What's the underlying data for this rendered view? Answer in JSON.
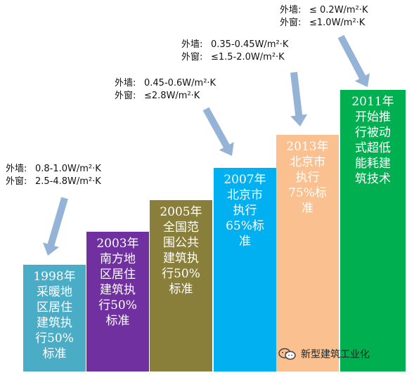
{
  "chart_data": {
    "type": "bar",
    "categories": [
      "1998年",
      "2003年",
      "2005年",
      "2007年",
      "2013年",
      "2011年"
    ],
    "bars": [
      {
        "label": "1998年\n采暖地\n区居住\n建筑执\n行50%\n标准",
        "color": "#4bacc6",
        "level": 1
      },
      {
        "label": "2003年\n南方地\n区居住\n建筑执\n行50%\n标准",
        "color": "#7030a0",
        "level": 2
      },
      {
        "label": "2005年\n全国范\n围公共\n建筑执\n行50%\n标准",
        "color": "#8a7f3a",
        "level": 3
      },
      {
        "label": "2007年\n北京市\n执行\n65%标\n准",
        "color": "#00b0f0",
        "level": 4
      },
      {
        "label": "2013年\n北京市\n执行\n75%标\n准",
        "color": "#fac090",
        "level": 5
      },
      {
        "label": "2011年\n开始推\n行被动\n式超低\n能耗建\n筑技术",
        "color": "#00b050",
        "level": 6
      }
    ],
    "annotations": [
      {
        "wall_key": "外墙:",
        "wall_value": "0.8-1.0W/m²·K",
        "window_key": "外窗:",
        "window_value": "2.5-4.8W/m²·K"
      },
      {
        "wall_key": "外墙:",
        "wall_value": "0.45-0.6W/m²·K",
        "window_key": "外窗:",
        "window_value": "≤2.8W/m²·K"
      },
      {
        "wall_key": "外墙:",
        "wall_value": "0.35-0.45W/m²·K",
        "window_key": "外窗:",
        "window_value": "≤1.5-2.0W/m²·K"
      },
      {
        "wall_key": "外墙:",
        "wall_value": "≤ 0.2W/m²·K",
        "window_key": "外窗:",
        "window_value": "≤1.0W/m²·K"
      }
    ],
    "arrow_color": "#95b3d7"
  },
  "watermark": {
    "text": "新型建筑工业化",
    "icon": "wechat-icon"
  }
}
